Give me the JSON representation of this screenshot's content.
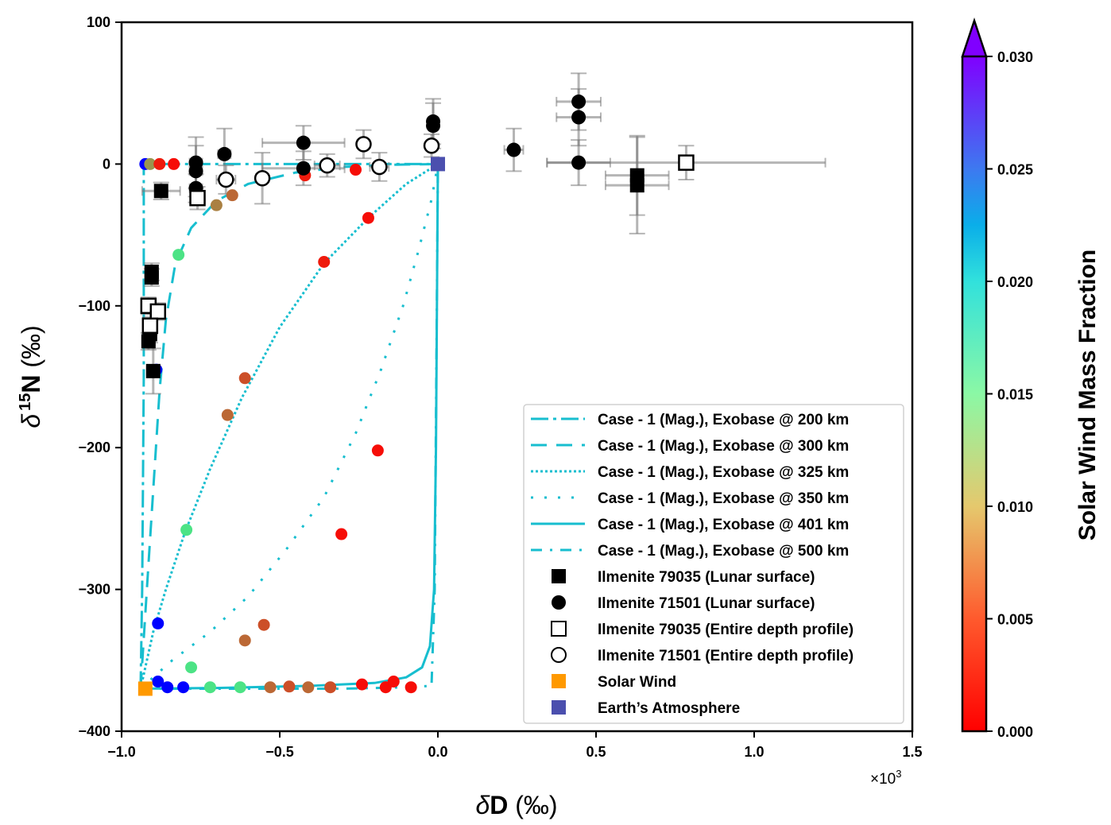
{
  "chart_data": {
    "type": "scatter",
    "xlabel_prefix": "δ",
    "xlabel_main": "D",
    "xlabel_unit": " (‰)",
    "ylabel_prefix": "δ",
    "ylabel_sup": "15",
    "ylabel_main": "N",
    "ylabel_unit": " (‰)",
    "x_scale_note": "×10",
    "x_scale_exp": "3",
    "xlim": [
      -1.0,
      1.5
    ],
    "ylim": [
      -400,
      100
    ],
    "x_ticks": [
      -1.0,
      -0.5,
      0.0,
      0.5,
      1.0,
      1.5
    ],
    "x_tick_labels": [
      "−1.0",
      "−0.5",
      "0.0",
      "0.5",
      "1.0",
      "1.5"
    ],
    "y_ticks": [
      100,
      0,
      -100,
      -200,
      -300,
      -400
    ],
    "y_tick_labels": [
      "100",
      "0",
      "−100",
      "−200",
      "−300",
      "−400"
    ],
    "grid": false,
    "legend_position": "lower-right",
    "colorbar": {
      "label": "Solar Wind Mass Fraction",
      "range": [
        0.0,
        0.03
      ],
      "extend": "max",
      "ticks": [
        0.0,
        0.005,
        0.01,
        0.015,
        0.02,
        0.025,
        0.03
      ],
      "tick_labels": [
        "0.000",
        "0.005",
        "0.010",
        "0.015",
        "0.020",
        "0.025",
        "0.030"
      ],
      "colormap": "rainbow"
    },
    "line_color": "#17becf",
    "curves": [
      {
        "name": "Case - 1 (Mag.), Exobase @ 200 km",
        "style": "dashdot",
        "x": [
          -0.94,
          -0.935,
          -0.93,
          -0.93,
          -0.93,
          -0.9,
          -0.6,
          -0.3,
          0.0
        ],
        "y": [
          -370,
          -300,
          -150,
          -50,
          0,
          0,
          0,
          0,
          0
        ]
      },
      {
        "name": "Case - 1 (Mag.), Exobase @ 300 km",
        "style": "dashed",
        "x": [
          -0.94,
          -0.92,
          -0.9,
          -0.88,
          -0.86,
          -0.83,
          -0.78,
          -0.7,
          -0.6,
          -0.45,
          -0.3,
          -0.15,
          0.0
        ],
        "y": [
          -370,
          -300,
          -230,
          -160,
          -110,
          -70,
          -45,
          -26,
          -14,
          -6,
          -2,
          -0.5,
          0
        ]
      },
      {
        "name": "Case - 1 (Mag.), Exobase @ 325 km",
        "style": "dotted",
        "x": [
          -0.94,
          -0.9,
          -0.86,
          -0.8,
          -0.72,
          -0.62,
          -0.5,
          -0.36,
          -0.22,
          -0.1,
          0.0
        ],
        "y": [
          -370,
          -330,
          -300,
          -260,
          -215,
          -165,
          -115,
          -70,
          -38,
          -14,
          0
        ]
      },
      {
        "name": "Case - 1 (Mag.), Exobase @ 350 km",
        "style": "loosely-dotted",
        "x": [
          -0.94,
          -0.84,
          -0.72,
          -0.6,
          -0.48,
          -0.36,
          -0.26,
          -0.18,
          -0.11,
          -0.06,
          -0.02,
          0.0
        ],
        "y": [
          -370,
          -350,
          -330,
          -305,
          -272,
          -235,
          -190,
          -145,
          -100,
          -60,
          -25,
          0
        ]
      },
      {
        "name": "Case - 1 (Mag.), Exobase @ 401 km",
        "style": "solid",
        "x": [
          -0.94,
          -0.7,
          -0.4,
          -0.2,
          -0.1,
          -0.05,
          -0.025,
          -0.012,
          -0.006,
          -0.003,
          0.0
        ],
        "y": [
          -370,
          -369.5,
          -368,
          -366,
          -362,
          -355,
          -340,
          -300,
          -200,
          -100,
          0
        ]
      },
      {
        "name": "Case - 1 (Mag.), Exobase @ 500 km",
        "style": "dash-dot-dot",
        "x": [
          -0.94,
          -0.6,
          -0.3,
          -0.1,
          -0.02,
          -0.01,
          -0.005,
          0.0
        ],
        "y": [
          -370,
          -370,
          -370,
          -369,
          -368,
          -300,
          -150,
          0
        ]
      }
    ],
    "model_points": [
      {
        "x": -0.925,
        "y": 0,
        "f": 0.031
      },
      {
        "x": -0.91,
        "y": 0,
        "f": 0.006
      },
      {
        "x": -0.88,
        "y": 0,
        "f": 0.001
      },
      {
        "x": -0.835,
        "y": 0,
        "f": 0.0005
      },
      {
        "x": -0.42,
        "y": -8,
        "f": 0.001
      },
      {
        "x": -0.26,
        "y": -4,
        "f": 0.0005
      },
      {
        "x": -0.65,
        "y": -22,
        "f": 0.004
      },
      {
        "x": -0.7,
        "y": -29,
        "f": 0.005
      },
      {
        "x": -0.82,
        "y": -64,
        "f": 0.0105
      },
      {
        "x": -0.22,
        "y": -38,
        "f": 0.0005
      },
      {
        "x": -0.36,
        "y": -69,
        "f": 0.001
      },
      {
        "x": -0.61,
        "y": -151,
        "f": 0.003
      },
      {
        "x": -0.665,
        "y": -177,
        "f": 0.004
      },
      {
        "x": -0.795,
        "y": -258,
        "f": 0.0105
      },
      {
        "x": -0.19,
        "y": -202,
        "f": 0.0005
      },
      {
        "x": -0.305,
        "y": -261,
        "f": 0.0005
      },
      {
        "x": -0.885,
        "y": -324,
        "f": 0.031
      },
      {
        "x": -0.89,
        "y": -145,
        "f": 0.031
      },
      {
        "x": -0.55,
        "y": -325,
        "f": 0.003
      },
      {
        "x": -0.61,
        "y": -336,
        "f": 0.004
      },
      {
        "x": -0.78,
        "y": -355,
        "f": 0.0105
      },
      {
        "x": -0.885,
        "y": -365,
        "f": 0.031
      },
      {
        "x": -0.855,
        "y": -369,
        "f": 0.031
      },
      {
        "x": -0.805,
        "y": -369,
        "f": 0.031
      },
      {
        "x": -0.72,
        "y": -369,
        "f": 0.0105
      },
      {
        "x": -0.625,
        "y": -369,
        "f": 0.0105
      },
      {
        "x": -0.53,
        "y": -369,
        "f": 0.004
      },
      {
        "x": -0.47,
        "y": -368.5,
        "f": 0.003
      },
      {
        "x": -0.41,
        "y": -369,
        "f": 0.004
      },
      {
        "x": -0.34,
        "y": -369,
        "f": 0.003
      },
      {
        "x": -0.24,
        "y": -367,
        "f": 0.0005
      },
      {
        "x": -0.165,
        "y": -369,
        "f": 0.0005
      },
      {
        "x": -0.14,
        "y": -365,
        "f": 0.0005
      },
      {
        "x": -0.085,
        "y": -369,
        "f": 0.0005
      }
    ],
    "series": [
      {
        "name": "Ilmenite 79035 (Lunar surface)",
        "marker": "square",
        "fill": "#000000",
        "points": [
          {
            "x": -0.875,
            "y": -19,
            "xerr": 0.06,
            "yerr": 6
          },
          {
            "x": -0.905,
            "y": -76,
            "xerr": 0.02,
            "yerr": 6
          },
          {
            "x": -0.905,
            "y": -80,
            "xerr": 0.02,
            "yerr": 6
          },
          {
            "x": -0.91,
            "y": -120,
            "xerr": 0.02,
            "yerr": 6
          },
          {
            "x": -0.915,
            "y": -125,
            "xerr": 0.02,
            "yerr": 6
          },
          {
            "x": -0.9,
            "y": -146,
            "xerr": 0.02,
            "yerr": 16
          },
          {
            "x": 0.63,
            "y": -8,
            "xerr": 0.1,
            "yerr": 28
          },
          {
            "x": 0.63,
            "y": -15,
            "xerr": 0.1,
            "yerr": 34
          }
        ]
      },
      {
        "name": "Ilmenite 71501 (Lunar surface)",
        "marker": "circle",
        "fill": "#000000",
        "points": [
          {
            "x": -0.765,
            "y": 1,
            "xerr": 0.02,
            "yerr": 18
          },
          {
            "x": -0.765,
            "y": -5,
            "xerr": 0.02,
            "yerr": 18
          },
          {
            "x": -0.765,
            "y": -17,
            "xerr": 0.02,
            "yerr": 10
          },
          {
            "x": -0.675,
            "y": 7,
            "xerr": 0.02,
            "yerr": 18
          },
          {
            "x": -0.425,
            "y": 15,
            "xerr": 0.13,
            "yerr": 12
          },
          {
            "x": -0.425,
            "y": -3,
            "xerr": 0.13,
            "yerr": 12
          },
          {
            "x": -0.015,
            "y": 30,
            "xerr": 0.005,
            "yerr": 16
          },
          {
            "x": -0.015,
            "y": 27,
            "xerr": 0.005,
            "yerr": 16
          },
          {
            "x": 0.24,
            "y": 10,
            "xerr": 0.03,
            "yerr": 15
          },
          {
            "x": 0.445,
            "y": 44,
            "xerr": 0.07,
            "yerr": 20
          },
          {
            "x": 0.445,
            "y": 33,
            "xerr": 0.07,
            "yerr": 20
          },
          {
            "x": 0.445,
            "y": 1,
            "xerr": 0.1,
            "yerr": 16
          }
        ]
      },
      {
        "name": "Ilmenite 79035 (Entire depth profile)",
        "marker": "square",
        "fill": "#ffffff",
        "points": [
          {
            "x": -0.76,
            "y": -24,
            "xerr": 0.02,
            "yerr": 8
          },
          {
            "x": -0.915,
            "y": -100,
            "xerr": 0.02,
            "yerr": 6
          },
          {
            "x": -0.885,
            "y": -104,
            "xerr": 0.02,
            "yerr": 6
          },
          {
            "x": -0.91,
            "y": -114,
            "xerr": 0.02,
            "yerr": 6
          },
          {
            "x": 0.785,
            "y": 1,
            "xerr": 0.44,
            "yerr": 12
          }
        ]
      },
      {
        "name": "Ilmenite 71501 (Entire depth profile)",
        "marker": "circle",
        "fill": "#ffffff",
        "points": [
          {
            "x": -0.67,
            "y": -11,
            "xerr": 0.03,
            "yerr": 10
          },
          {
            "x": -0.555,
            "y": -10,
            "xerr": 0.02,
            "yerr": 18
          },
          {
            "x": -0.35,
            "y": -1,
            "xerr": 0.04,
            "yerr": 8
          },
          {
            "x": -0.235,
            "y": 14,
            "xerr": 0.02,
            "yerr": 10
          },
          {
            "x": -0.185,
            "y": -2,
            "xerr": 0.03,
            "yerr": 10
          },
          {
            "x": -0.02,
            "y": 13,
            "xerr": 0.005,
            "yerr": 8
          }
        ]
      },
      {
        "name": "Solar Wind",
        "marker": "square",
        "fill": "#ff9900",
        "points": [
          {
            "x": -0.925,
            "y": -370
          }
        ]
      },
      {
        "name": "Earth’s Atmosphere",
        "marker": "square",
        "fill": "#4b4fae",
        "points": [
          {
            "x": 0.0,
            "y": 0
          }
        ]
      }
    ],
    "legend": [
      "Case - 1 (Mag.), Exobase @ 200 km",
      "Case - 1 (Mag.), Exobase @ 300 km",
      "Case - 1 (Mag.), Exobase @ 325 km",
      "Case - 1 (Mag.), Exobase @ 350 km",
      "Case - 1 (Mag.), Exobase @ 401 km",
      "Case - 1 (Mag.), Exobase @ 500 km",
      "Ilmenite 79035 (Lunar surface)",
      "Ilmenite 71501 (Lunar surface)",
      "Ilmenite 79035 (Entire depth profile)",
      "Ilmenite 71501 (Entire depth profile)",
      "Solar Wind",
      "Earth’s Atmosphere"
    ]
  }
}
